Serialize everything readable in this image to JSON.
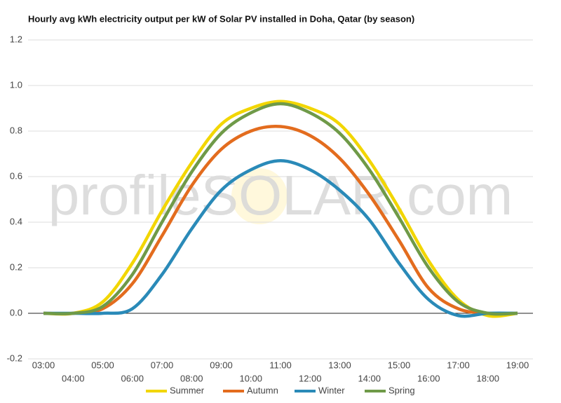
{
  "chart_data": {
    "type": "line",
    "title": "Hourly avg kWh electricity output per kW of Solar PV installed in Doha, Qatar (by season)",
    "watermark": "profileSOLAR.com",
    "categories": [
      "03:00",
      "04:00",
      "05:00",
      "06:00",
      "07:00",
      "08:00",
      "09:00",
      "10:00",
      "11:00",
      "12:00",
      "13:00",
      "14:00",
      "15:00",
      "16:00",
      "17:00",
      "18:00",
      "19:00"
    ],
    "series": [
      {
        "name": "Summer",
        "color": "#f2d600",
        "values": [
          0,
          0,
          0.05,
          0.22,
          0.45,
          0.66,
          0.83,
          0.9,
          0.93,
          0.9,
          0.83,
          0.67,
          0.46,
          0.23,
          0.06,
          -0.01,
          0
        ]
      },
      {
        "name": "Autumn",
        "color": "#e36c1e",
        "values": [
          0,
          0,
          0.02,
          0.13,
          0.34,
          0.56,
          0.72,
          0.8,
          0.82,
          0.78,
          0.68,
          0.52,
          0.32,
          0.11,
          0.02,
          0,
          0
        ]
      },
      {
        "name": "Winter",
        "color": "#2a8ab8",
        "values": [
          0,
          0,
          0,
          0.02,
          0.17,
          0.37,
          0.54,
          0.63,
          0.67,
          0.63,
          0.54,
          0.41,
          0.22,
          0.06,
          -0.01,
          0,
          0
        ]
      },
      {
        "name": "Spring",
        "color": "#6f9a48",
        "values": [
          0,
          0,
          0.03,
          0.17,
          0.4,
          0.62,
          0.79,
          0.88,
          0.92,
          0.88,
          0.79,
          0.63,
          0.42,
          0.2,
          0.05,
          0,
          0
        ]
      }
    ],
    "ylim": [
      -0.2,
      1.2
    ],
    "yticks": [
      -0.2,
      {
        "value": 0,
        "label": "0.0"
      },
      0.2,
      0.4,
      0.6,
      0.8,
      {
        "value": 1,
        "label": "1.0"
      },
      1.2
    ],
    "grid": true
  }
}
